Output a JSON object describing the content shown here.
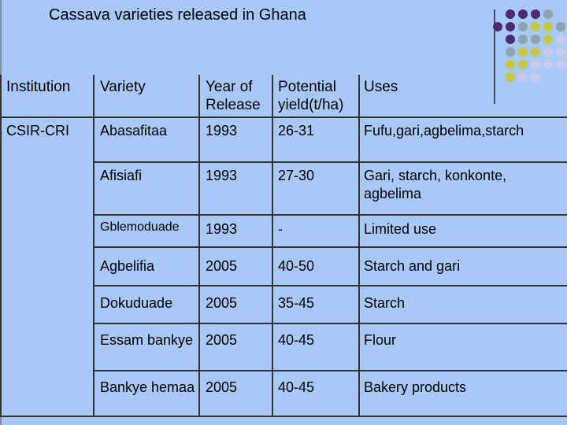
{
  "header": {
    "title": "Cassava varieties released in Ghana"
  },
  "table": {
    "headers": [
      "Institution",
      "Variety",
      "Year of Release",
      "Potential yield(t/ha)",
      "Uses"
    ],
    "institution": "CSIR-CRI",
    "rows": [
      [
        "Abasafitaa",
        1993,
        "26-31",
        "Fufu,gari,agbelima,starch"
      ],
      [
        "Afisiafi",
        1993,
        "27-30",
        "Gari, starch, konkonte, agbelima"
      ],
      [
        "Gblemoduade",
        1993,
        "-",
        "Limited use"
      ],
      [
        "Agbelifia",
        2005,
        "40-50",
        "Starch and gari"
      ],
      [
        "Dokuduade",
        2005,
        "35-45",
        "Starch"
      ],
      [
        "Essam bankye",
        2005,
        "40-45",
        "Flour"
      ],
      [
        "Bankye hemaa",
        2005,
        "40-45",
        "Bakery products"
      ]
    ]
  }
}
